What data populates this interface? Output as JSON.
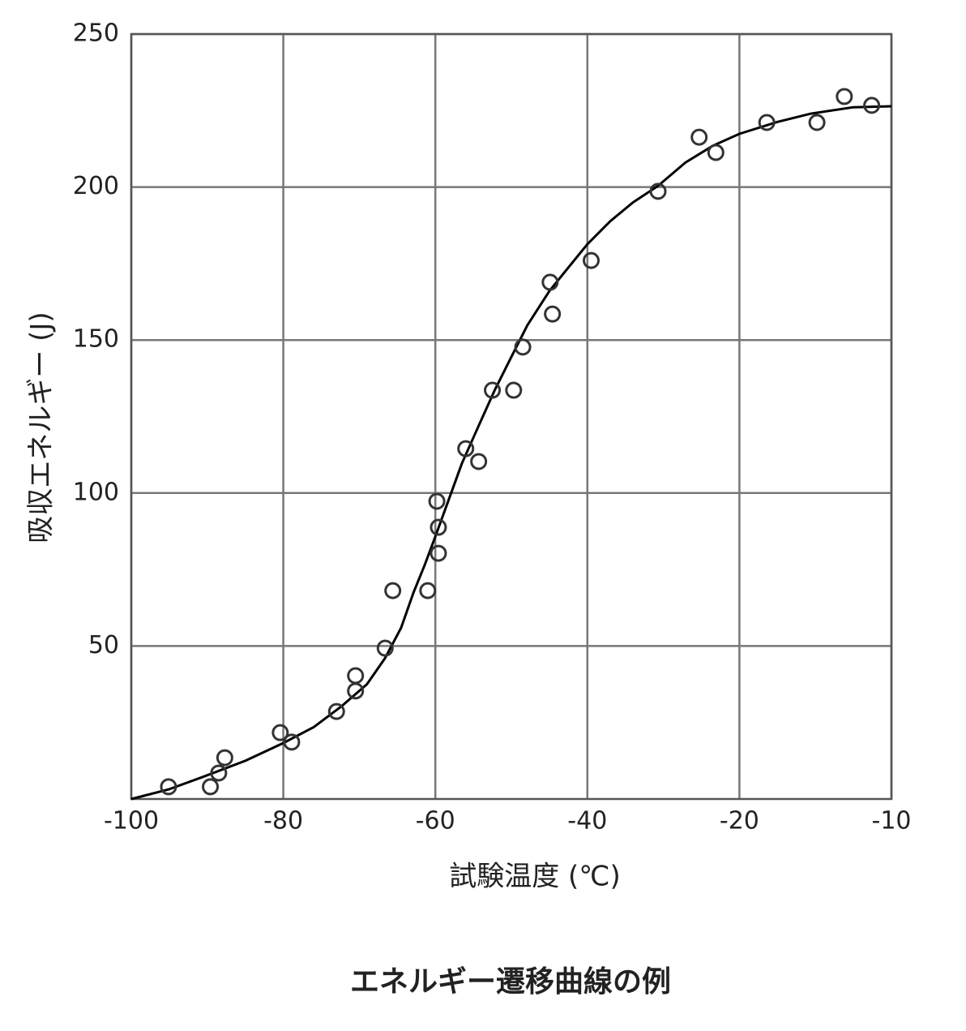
{
  "chart_data": {
    "type": "scatter",
    "x_label": "試験温度 (℃)",
    "y_label": "吸収エネルギー (J)",
    "caption": "エネルギー遷移曲線の例",
    "xlim": [
      -100,
      -10
    ],
    "xticks": [
      -100,
      -80,
      -60,
      -40,
      -20,
      -10
    ],
    "ylim": [
      0,
      250
    ],
    "yticks": [
      50,
      100,
      150,
      200,
      250
    ],
    "grid": true,
    "points": {
      "color": "#333333",
      "x": [
        -95.1,
        -89.6,
        -88.5,
        -87.7,
        -80.4,
        -78.9,
        -73.0,
        -70.5,
        -70.5,
        -66.6,
        -65.6,
        -61.0,
        -59.6,
        -59.6,
        -59.8,
        -56.0,
        -54.3,
        -52.5,
        -49.7,
        -48.5,
        -44.9,
        -44.6,
        -39.5,
        -30.7,
        -25.3,
        -23.1,
        -18.2,
        -14.9,
        -13.1,
        -11.3
      ],
      "y": [
        4.0,
        4.0,
        8.5,
        13.5,
        21.7,
        18.6,
        28.6,
        35.3,
        40.3,
        49.3,
        68.1,
        68.1,
        80.3,
        88.8,
        97.3,
        114.5,
        110.3,
        133.6,
        133.6,
        147.7,
        168.9,
        158.5,
        176.0,
        198.6,
        216.3,
        211.3,
        221.1,
        221.1,
        229.6,
        226.7
      ]
    },
    "curve": {
      "color": "#000000",
      "x": [
        -100,
        -95,
        -90.6,
        -85,
        -80,
        -76,
        -72.4,
        -69,
        -66.6,
        -64.5,
        -62.9,
        -61.4,
        -60,
        -58,
        -56.5,
        -54.3,
        -52.2,
        -50,
        -47.9,
        -45,
        -42.6,
        -40,
        -37,
        -34,
        -30.7,
        -27.1,
        -23.5,
        -20,
        -17.5,
        -15.3,
        -12.5,
        -10
      ],
      "y": [
        0,
        3.2,
        7.2,
        12.5,
        18.3,
        23.5,
        30.2,
        37.5,
        46.1,
        56.0,
        67.3,
        76.5,
        85.8,
        99.5,
        109.7,
        122.0,
        133.6,
        144.5,
        154.8,
        166.0,
        173.4,
        181.3,
        188.8,
        195.0,
        200.4,
        208.0,
        213.5,
        217.4,
        221.3,
        224.0,
        226.1,
        226.4
      ]
    }
  }
}
